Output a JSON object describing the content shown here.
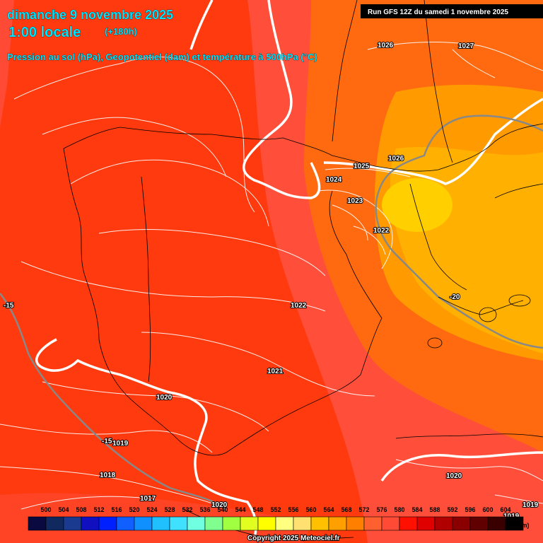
{
  "header": {
    "date": "dimanche 9 novembre 2025",
    "time": "1:00 locale",
    "lead": "(+180h)",
    "subtitle": "Pression au sol (hPa), Geopotentiel (dam) et température à 500hPa (°C)",
    "run": "Run GFS 12Z du samedi 1 novembre 2025"
  },
  "isobar_labels": [
    "1026",
    "1027",
    "1025",
    "1026",
    "1024",
    "1023",
    "1022",
    "1022",
    "1021",
    "1020",
    "1019",
    "1018",
    "1017",
    "1020",
    "1020",
    "1019",
    "1019"
  ],
  "temp_labels": [
    "-15",
    "-15",
    "-20"
  ],
  "scale": {
    "labels": [
      "500",
      "504",
      "508",
      "512",
      "516",
      "520",
      "524",
      "528",
      "532",
      "536",
      "540",
      "544",
      "548",
      "552",
      "556",
      "560",
      "564",
      "568",
      "572",
      "576",
      "580",
      "584",
      "588",
      "592",
      "596",
      "600",
      "604"
    ],
    "colors": [
      "#0a0a40",
      "#102a60",
      "#1a3a90",
      "#1010c0",
      "#0020ff",
      "#1060ff",
      "#1090ff",
      "#20c0ff",
      "#40e0ff",
      "#70ffe0",
      "#80ff90",
      "#a0ff40",
      "#e0ff20",
      "#ffff00",
      "#ffff80",
      "#ffe070",
      "#ffc000",
      "#ff9f00",
      "#ff8000",
      "#ff6030",
      "#ff4a35",
      "#ff1000",
      "#e00000",
      "#b00000",
      "#8a0000",
      "#600000",
      "#3a0000",
      "#000000"
    ],
    "unit": "(dam)"
  },
  "copyright": "Copyright 2025 Meteociel.fr"
}
